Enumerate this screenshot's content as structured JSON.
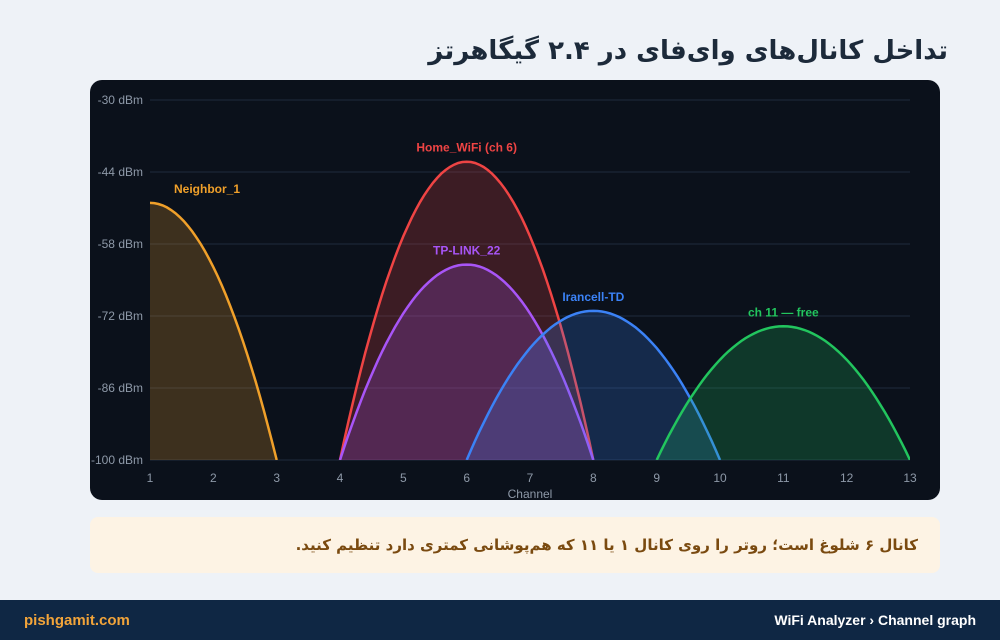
{
  "page": {
    "title": "تداخل کانال‌های وای‌فای در ۲.۴ گیگاهرتز"
  },
  "note": {
    "text": "کانال ۶ شلوغ است؛ روتر را روی کانال ۱ یا ۱۱ که هم‌پوشانی کمتری دارد تنظیم کنید."
  },
  "footer": {
    "site": "pishgamit.com",
    "breadcrumb": "WiFi Analyzer › Channel graph"
  },
  "colors": {
    "card_bg": "#0b111b",
    "note_bg": "#fdf3e4",
    "footer_bg": "#0f2744",
    "footer_site": "#f2a43a"
  },
  "chart_data": {
    "type": "area",
    "xlabel": "Channel",
    "ylabel": "",
    "x_ticks": [
      1,
      2,
      3,
      4,
      5,
      6,
      7,
      8,
      9,
      10,
      11,
      12,
      13
    ],
    "y_ticks": [
      "-30 dBm",
      "-44 dBm",
      "-58 dBm",
      "-72 dBm",
      "-86 dBm",
      "-100 dBm"
    ],
    "y_tick_values": [
      -30,
      -44,
      -58,
      -72,
      -86,
      -100
    ],
    "xlim": [
      1,
      13
    ],
    "ylim": [
      -100,
      -30
    ],
    "grid": true,
    "series": [
      {
        "name": "Neighbor_1",
        "center_channel": 1,
        "peak_dbm": -50,
        "width_channels": 4,
        "color": "#f0a02a"
      },
      {
        "name": "Home_WiFi (ch 6)",
        "center_channel": 6,
        "peak_dbm": -42,
        "width_channels": 4,
        "color": "#ef4444"
      },
      {
        "name": "TP-LINK_22",
        "center_channel": 6,
        "peak_dbm": -62,
        "width_channels": 4,
        "color": "#a855f7"
      },
      {
        "name": "Irancell-TD",
        "center_channel": 8,
        "peak_dbm": -71,
        "width_channels": 4,
        "color": "#3b82f6"
      },
      {
        "name": "ch 11 — free",
        "center_channel": 11,
        "peak_dbm": -74,
        "width_channels": 4,
        "color": "#22c55e"
      }
    ]
  }
}
